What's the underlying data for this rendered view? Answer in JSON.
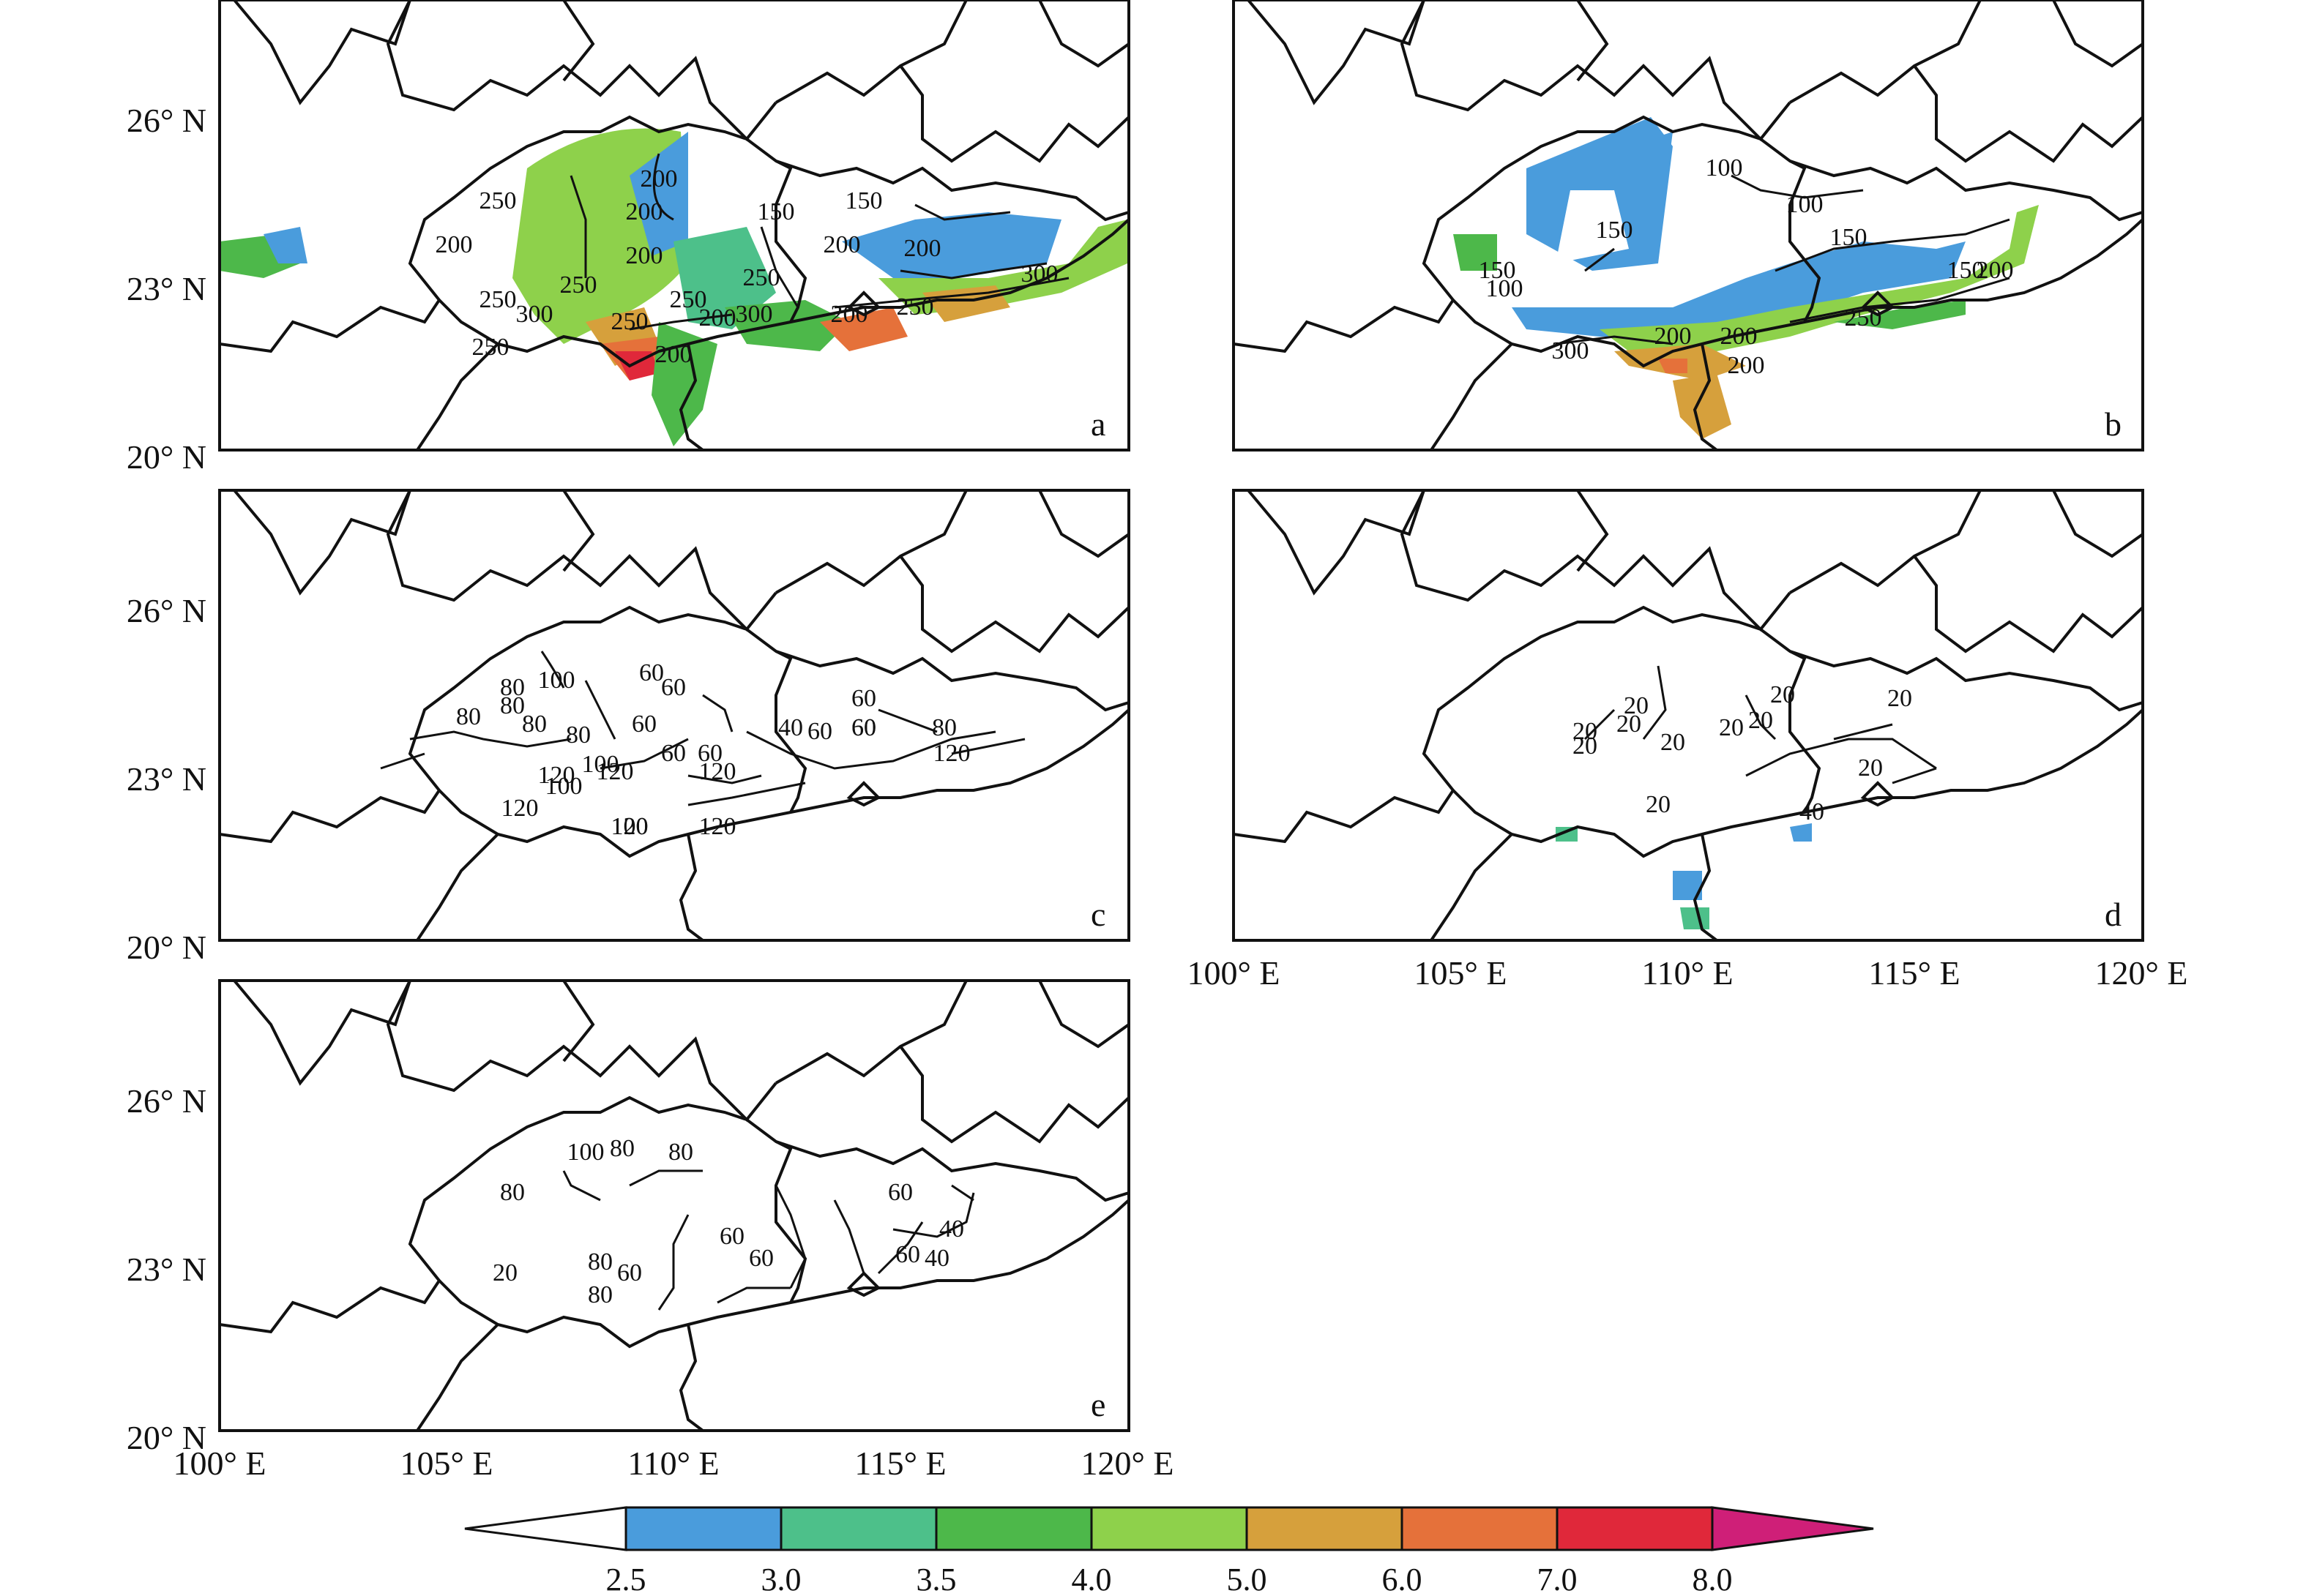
{
  "panels": [
    {
      "id": "a",
      "letter": "a",
      "lat_ticks": [
        "26° N",
        "23° N",
        "20° N"
      ],
      "lon_ticks": [],
      "contour_labels": [
        "250",
        "200",
        "200",
        "200",
        "200",
        "150",
        "150",
        "200",
        "200",
        "250",
        "300",
        "250",
        "250",
        "250",
        "300",
        "250",
        "200",
        "300",
        "250",
        "200",
        "200",
        "250"
      ],
      "fill_levels": [
        "2.5",
        "3.5",
        "4.0",
        "5.0",
        "6.0",
        "7.0"
      ]
    },
    {
      "id": "b",
      "letter": "b",
      "lat_ticks": [],
      "lon_ticks": [],
      "contour_labels": [
        "100",
        "100",
        "150",
        "150",
        "150",
        "150",
        "100",
        "200",
        "200",
        "250",
        "300",
        "200",
        "200"
      ],
      "fill_levels": [
        "2.5",
        "3.0",
        "4.0",
        "5.0",
        "6.0"
      ]
    },
    {
      "id": "c",
      "letter": "c",
      "lat_ticks": [
        "26° N",
        "23° N",
        "20° N"
      ],
      "lon_ticks": [],
      "contour_labels": [
        "100",
        "80",
        "80",
        "60",
        "60",
        "80",
        "60",
        "80",
        "60",
        "60",
        "60",
        "80",
        "100",
        "120",
        "120",
        "100",
        "120",
        "40",
        "60",
        "80",
        "120",
        "60",
        "120",
        "120",
        "120",
        "100",
        "60"
      ],
      "fill_levels": []
    },
    {
      "id": "d",
      "letter": "d",
      "lat_ticks": [],
      "lon_ticks": [
        "100° E",
        "105° E",
        "110° E",
        "115° E",
        "120° E"
      ],
      "contour_labels": [
        "20",
        "20",
        "20",
        "20",
        "20",
        "20",
        "20",
        "20",
        "20",
        "20",
        "40",
        "20"
      ],
      "fill_levels": [
        "2.5",
        "3.0"
      ]
    },
    {
      "id": "e",
      "letter": "e",
      "lat_ticks": [
        "26° N",
        "23° N",
        "20° N"
      ],
      "lon_ticks": [
        "100° E",
        "105° E",
        "110° E",
        "115° E",
        "120° E"
      ],
      "contour_labels": [
        "100",
        "80",
        "80",
        "80",
        "60",
        "60",
        "80",
        "60",
        "60",
        "40",
        "40",
        "20",
        "60",
        "80"
      ],
      "fill_levels": []
    }
  ],
  "colorbar": {
    "labels": [
      "2.5",
      "3.0",
      "3.5",
      "4.0",
      "5.0",
      "6.0",
      "7.0",
      "8.0"
    ],
    "colors": [
      "#ffffff",
      "#4a9cdc",
      "#4dc08a",
      "#4db84a",
      "#8ed14b",
      "#d6a03c",
      "#e5713a",
      "#e0283a",
      "#cf1f78"
    ]
  }
}
